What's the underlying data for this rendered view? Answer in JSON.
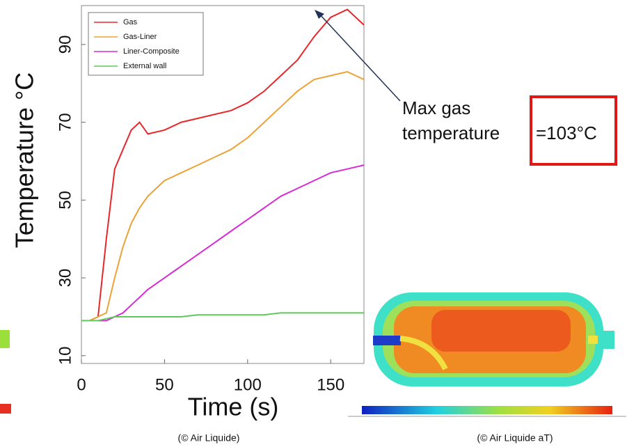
{
  "chart_data": {
    "type": "line",
    "x_label": "Time (s)",
    "y_label": "Temperature °C",
    "x": [
      0,
      5,
      10,
      15,
      20,
      25,
      30,
      35,
      40,
      50,
      60,
      70,
      80,
      90,
      100,
      110,
      120,
      130,
      140,
      150,
      160,
      170
    ],
    "series": [
      {
        "name": "Gas",
        "color": "#e8262a",
        "values": [
          19,
          19,
          20,
          40,
          58,
          63,
          68,
          70,
          67,
          68,
          70,
          71,
          72,
          73,
          75,
          78,
          82,
          86,
          92,
          97,
          99,
          95
        ]
      },
      {
        "name": "Gas-Liner",
        "color": "#eca235",
        "values": [
          19,
          19,
          20,
          21,
          30,
          38,
          44,
          48,
          51,
          55,
          57,
          59,
          61,
          63,
          66,
          70,
          74,
          78,
          81,
          82,
          83,
          81
        ]
      },
      {
        "name": "Liner-Composite",
        "color": "#d62bd6",
        "values": [
          19,
          19,
          19,
          19,
          20,
          21,
          23,
          25,
          27,
          30,
          33,
          36,
          39,
          42,
          45,
          48,
          51,
          53,
          55,
          57,
          58,
          59
        ]
      },
      {
        "name": "External wall",
        "color": "#5ec85e",
        "values": [
          19,
          19,
          19,
          19.5,
          20,
          20,
          20,
          20,
          20,
          20,
          20,
          20.5,
          20.5,
          20.5,
          20.5,
          20.5,
          21,
          21,
          21,
          21,
          21,
          21
        ]
      }
    ],
    "xlim": [
      0,
      170
    ],
    "ylim": [
      8,
      100
    ],
    "xticks": [
      0,
      50,
      100,
      150
    ],
    "yticks": [
      10,
      30,
      50,
      70,
      90
    ],
    "legend": "upper-left",
    "annotation_lines": [
      "Max gas",
      "temperature"
    ],
    "highlight": "=103°C",
    "credits": [
      "(© Air Liquide)",
      "(© Air Liquide aT)"
    ]
  }
}
